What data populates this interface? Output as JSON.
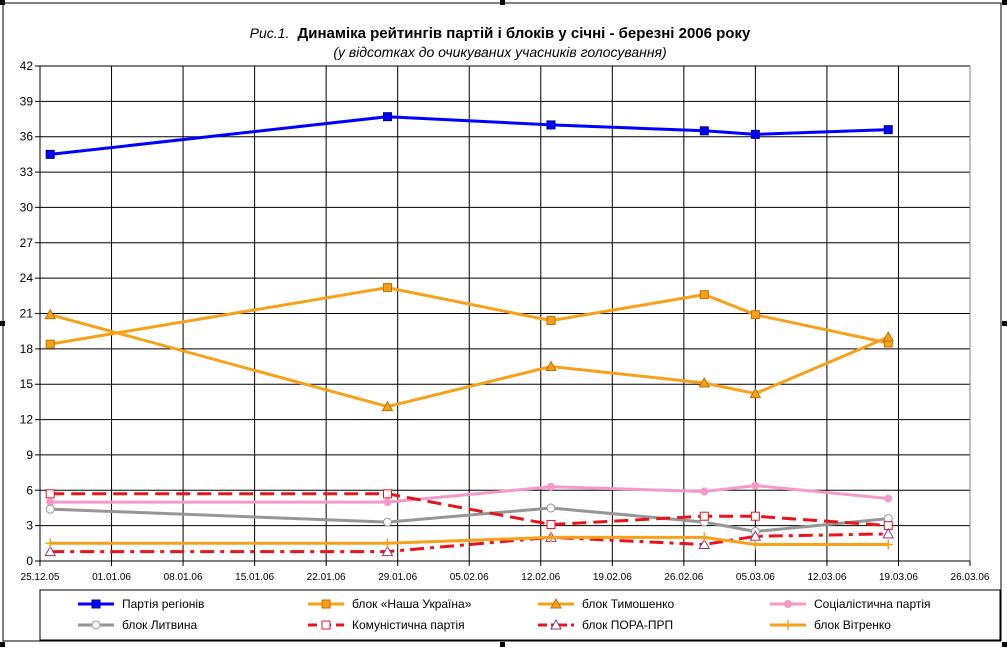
{
  "chart_data": {
    "type": "line",
    "title_prefix": "Рис.1.",
    "title": "Динаміка рейтингів партій і блоків у січні - березні 2006 року",
    "subtitle": "(у відсотках до очикуваних учасників голосування)",
    "xlabel": "",
    "ylabel": "",
    "ylim": [
      0,
      42
    ],
    "ystep": 3,
    "yticks": [
      "0",
      "3",
      "6",
      "9",
      "12",
      "15",
      "18",
      "21",
      "24",
      "27",
      "30",
      "33",
      "36",
      "39",
      "42"
    ],
    "xlim": [
      "2005-12-25",
      "2006-03-26"
    ],
    "xticks": [
      "25.12.05",
      "01.01.06",
      "08.01.06",
      "15.01.06",
      "22.01.06",
      "29.01.06",
      "05.02.06",
      "12.02.06",
      "19.02.06",
      "26.02.06",
      "05.03.06",
      "12.03.06",
      "19.03.06",
      "26.03.06"
    ],
    "grid": true,
    "legend_position": "bottom",
    "x": [
      "2005-12-26",
      "2006-01-28",
      "2006-02-13",
      "2006-02-28",
      "2006-03-05",
      "2006-03-18"
    ],
    "series": [
      {
        "name": "Партія регіонів",
        "values": [
          34.5,
          37.7,
          37.0,
          36.5,
          36.2,
          36.6
        ],
        "color": "#0000FF",
        "marker": "square-filled",
        "dash": "solid"
      },
      {
        "name": "блок «Наша Україна»",
        "values": [
          18.4,
          23.2,
          20.4,
          22.6,
          20.9,
          18.5
        ],
        "color": "#F7A11A",
        "marker": "square-filled",
        "dash": "solid"
      },
      {
        "name": "блок Тимошенко",
        "values": [
          20.9,
          13.1,
          16.5,
          15.1,
          14.2,
          19.0
        ],
        "color": "#F7A11A",
        "marker": "triangle-filled",
        "dash": "solid"
      },
      {
        "name": "Соціалістична партія",
        "values": [
          5.0,
          5.0,
          6.3,
          5.9,
          6.4,
          5.3
        ],
        "color": "#F49AC8",
        "marker": "circle-filled",
        "dash": "solid"
      },
      {
        "name": "блок Литвина",
        "values": [
          4.4,
          3.3,
          4.5,
          3.3,
          2.5,
          3.6
        ],
        "color": "#969696",
        "marker": "circle-open",
        "dash": "solid"
      },
      {
        "name": "Комуністична партія",
        "values": [
          5.7,
          5.7,
          3.1,
          3.8,
          3.8,
          3.0
        ],
        "color": "#E8141B",
        "marker": "square-open",
        "dash": "dash"
      },
      {
        "name": "блок ПОРА-ПРП",
        "values": [
          0.8,
          0.8,
          2.0,
          1.4,
          2.1,
          2.3
        ],
        "color": "#E8141B",
        "marker": "triangle-open",
        "dash": "dashdot"
      },
      {
        "name": "блок Вітренко",
        "values": [
          1.5,
          1.5,
          2.0,
          2.0,
          1.4,
          1.4
        ],
        "color": "#F7A11A",
        "marker": "plus",
        "dash": "solid"
      }
    ]
  }
}
